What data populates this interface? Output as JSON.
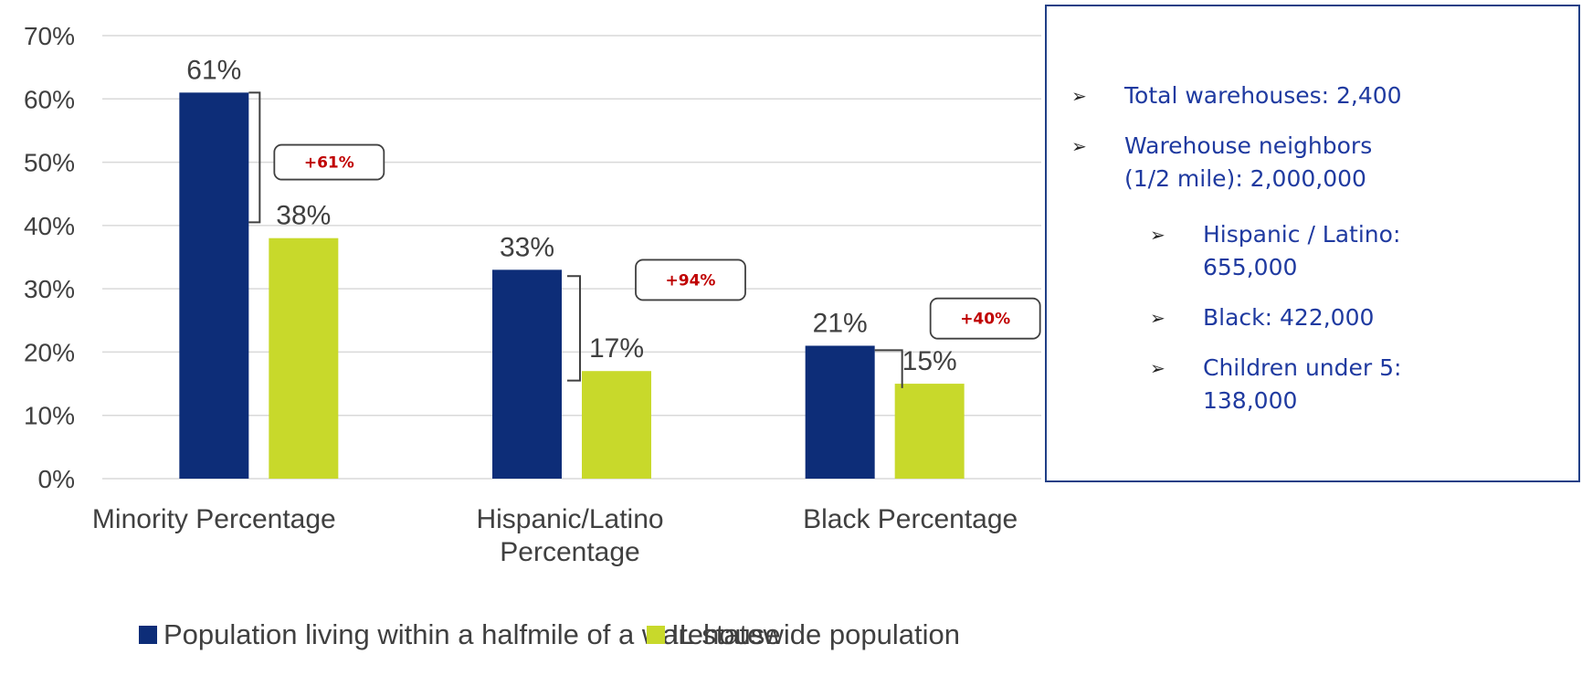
{
  "chart_data": {
    "type": "bar",
    "categories": [
      [
        "Minority Percentage"
      ],
      [
        "Hispanic/Latino",
        "Percentage"
      ],
      [
        "Black Percentage"
      ]
    ],
    "series": [
      {
        "name": "Population living within a halfmile of a warehouse",
        "values": [
          61,
          33,
          21
        ],
        "color": "#0d2d78"
      },
      {
        "name": "IL statewide population",
        "values": [
          38,
          17,
          15
        ],
        "color": "#c8d92b"
      }
    ],
    "data_labels": [
      [
        "61%",
        "33%",
        "21%"
      ],
      [
        "38%",
        "17%",
        "15%"
      ]
    ],
    "ylim": [
      0,
      70
    ],
    "yticks": [
      0,
      10,
      20,
      30,
      40,
      50,
      60,
      70
    ],
    "ytick_labels": [
      "0%",
      "10%",
      "20%",
      "30%",
      "40%",
      "50%",
      "60%",
      "70%"
    ],
    "grid": true,
    "legend_position": "bottom",
    "annotations": [
      "+61%",
      "+94%",
      "+40%"
    ],
    "title": "",
    "xlabel": "",
    "ylabel": ""
  },
  "colors": {
    "callout_text": "#c00000",
    "info_text": "#1f3aa0",
    "info_border": "#203f86"
  },
  "info_box": {
    "bullet_icon": "arrow-bullet-icon",
    "items": [
      {
        "text": "Total warehouses: 2,400",
        "level": 1
      },
      {
        "text": "Warehouse neighbors (1/2 mile): 2,000,000",
        "level": 1
      },
      {
        "text": "Hispanic / Latino: 655,000",
        "level": 2
      },
      {
        "text": "Black: 422,000",
        "level": 2
      },
      {
        "text": "Children under 5: 138,000",
        "level": 2
      }
    ]
  }
}
